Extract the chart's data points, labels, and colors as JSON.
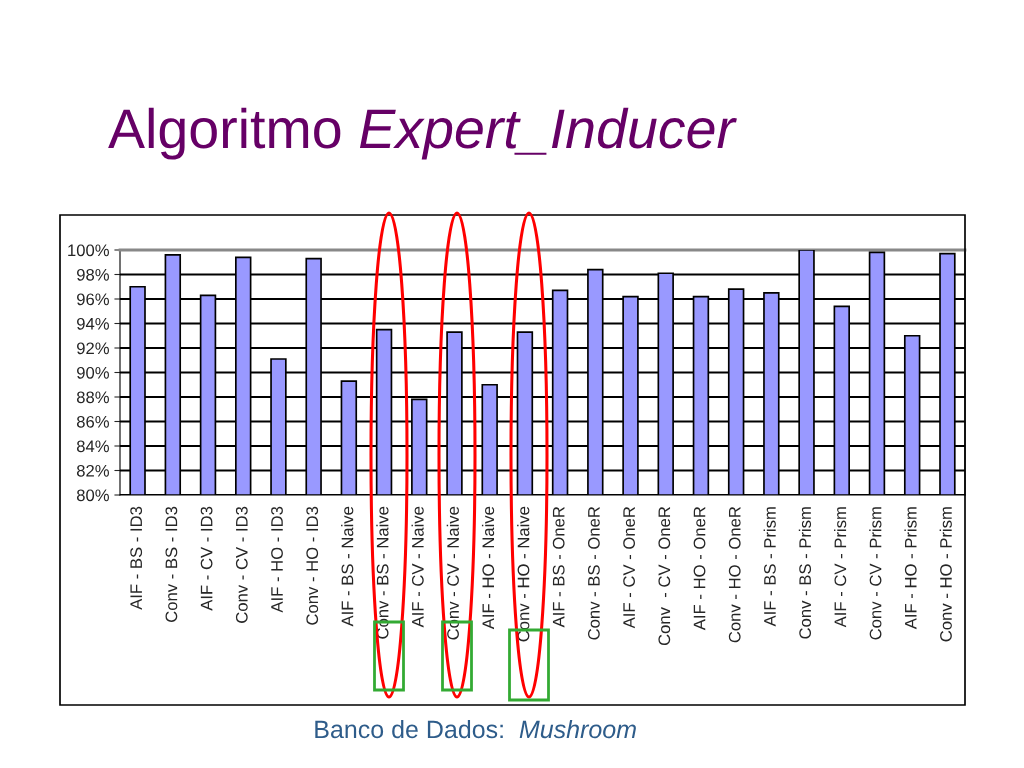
{
  "chart_data": {
    "type": "bar",
    "title": "Algoritmo Expert_Inducer",
    "categories": [
      "AIF - BS - ID3",
      "Conv - BS - ID3",
      "AIF - CV - ID3",
      "Conv - CV - ID3",
      "AIF - HO - ID3",
      "Conv - HO - ID3",
      "AIF - BS - Naive",
      "Conv - BS - Naive",
      "AIF - CV - Naive",
      "Conv - CV - Naive",
      "AIF - HO - Naive",
      "Conv - HO - Naive",
      "AIF - BS - OneR",
      "Conv - BS - OneR",
      "AIF - CV - OneR",
      "Conv  - CV - OneR",
      "AIF - HO - OneR",
      "Conv - HO - OneR",
      "AIF - BS - Prism",
      "Conv - BS - Prism",
      "AIF - CV - Prism",
      "Conv - CV - Prism",
      "AIF - HO - Prism",
      "Conv - HO - Prism"
    ],
    "values": [
      97.0,
      99.6,
      96.3,
      99.4,
      91.1,
      99.3,
      89.3,
      93.5,
      87.8,
      93.3,
      89.0,
      93.3,
      96.7,
      98.4,
      96.2,
      98.1,
      96.2,
      96.8,
      96.5,
      100,
      95.4,
      99.8,
      93.0,
      99.7
    ],
    "color": "#9999ff",
    "ylim": [
      80,
      100
    ],
    "yticks": [
      {
        "value": 80,
        "label": "80%"
      },
      {
        "value": 82,
        "label": "82%"
      },
      {
        "value": 84,
        "label": "84%"
      },
      {
        "value": 86,
        "label": "86%"
      },
      {
        "value": 88,
        "label": "88%"
      },
      {
        "value": 90,
        "label": "90%"
      },
      {
        "value": 92,
        "label": "92%"
      },
      {
        "value": 94,
        "label": "94%"
      },
      {
        "value": 96,
        "label": "96%"
      },
      {
        "value": 98,
        "label": "98%"
      },
      {
        "value": 100,
        "label": "100%"
      }
    ],
    "grid": "y",
    "annotations": [
      "Banco de Dados: Mushroom"
    ]
  }
}
